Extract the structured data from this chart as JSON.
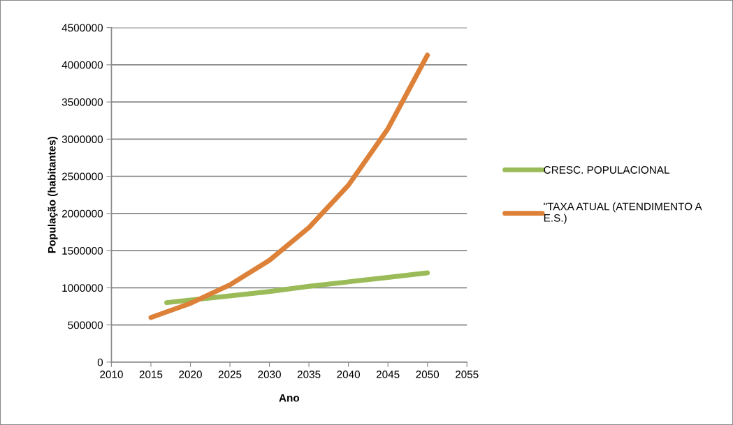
{
  "chart_data": {
    "type": "line",
    "xlabel": "Ano",
    "ylabel": "População (habitantes)",
    "xlim": [
      2010,
      2055
    ],
    "xticks": [
      2010,
      2015,
      2020,
      2025,
      2030,
      2035,
      2040,
      2045,
      2050,
      2055
    ],
    "ylim": [
      0,
      4500000
    ],
    "yticks": [
      0,
      500000,
      1000000,
      1500000,
      2000000,
      2500000,
      3000000,
      3500000,
      4000000,
      4500000
    ],
    "grid": "y",
    "legend": "right",
    "marker": "none",
    "line_style": "solid",
    "series": [
      {
        "name": "CRESC. POPULACIONAL",
        "color": "#9bbb59",
        "x": [
          2017,
          2020,
          2025,
          2030,
          2035,
          2040,
          2045,
          2050
        ],
        "values": [
          800000,
          835000,
          890000,
          950000,
          1020000,
          1080000,
          1140000,
          1200000
        ]
      },
      {
        "name": "\"TAXA ATUAL (ATENDIMENTO A E.S.)",
        "color": "#dd8139",
        "x": [
          2015,
          2020,
          2025,
          2030,
          2035,
          2040,
          2045,
          2050
        ],
        "values": [
          600000,
          790000,
          1040000,
          1370000,
          1810000,
          2380000,
          3140000,
          4130000
        ]
      }
    ]
  }
}
